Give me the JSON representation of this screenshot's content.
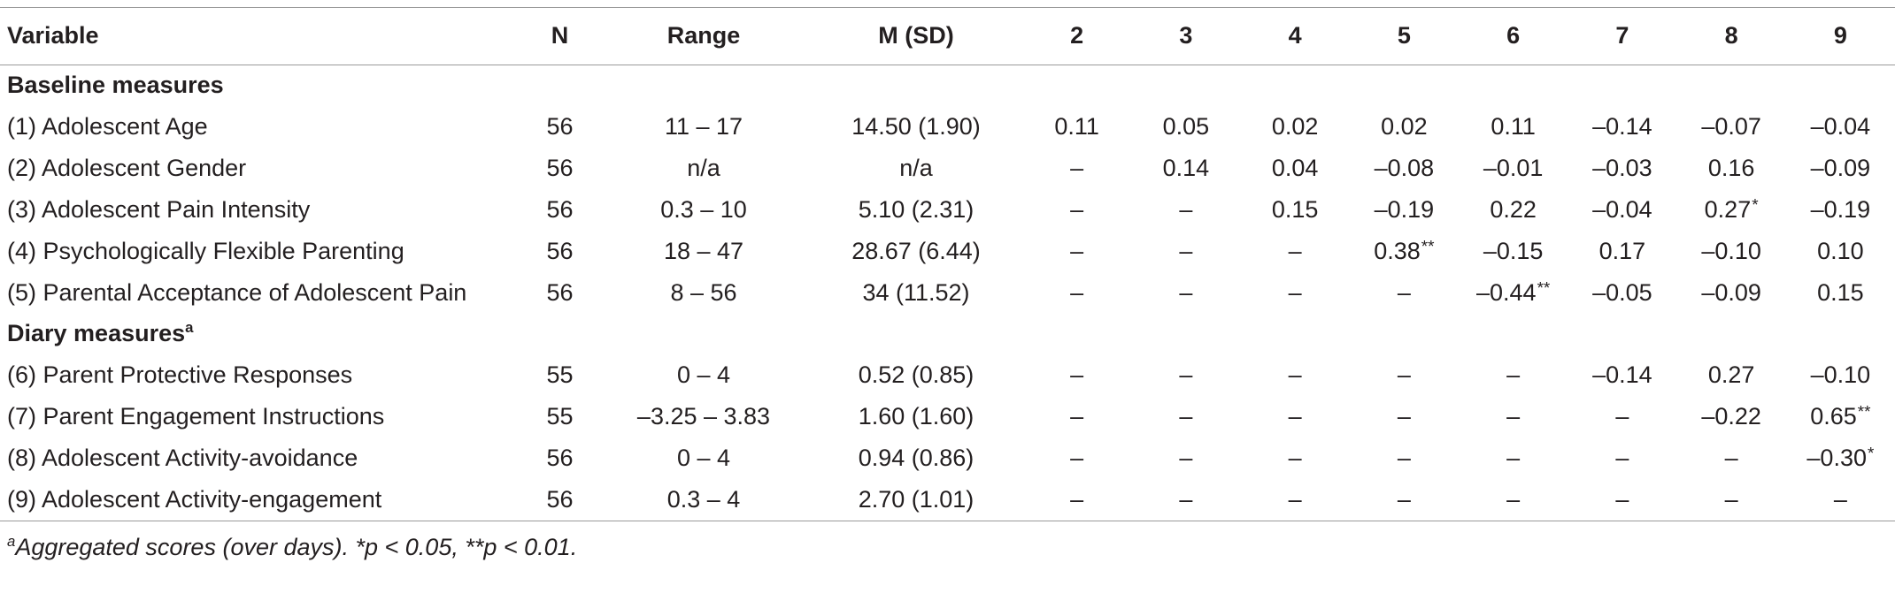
{
  "table": {
    "headers": {
      "variable": "Variable",
      "n": "N",
      "range": "Range",
      "msd": "M (SD)",
      "cols": [
        "2",
        "3",
        "4",
        "5",
        "6",
        "7",
        "8",
        "9"
      ]
    },
    "sections": {
      "baseline": "Baseline measures",
      "diary": "Diary measures",
      "diary_marker": "a"
    },
    "rows": [
      {
        "variable": "(1) Adolescent Age",
        "n": "56",
        "range": "11 – 17",
        "msd": "14.50 (1.90)",
        "values": [
          "0.11",
          "0.05",
          "0.02",
          "0.02",
          "0.11",
          "–0.14",
          "–0.07",
          "–0.04"
        ],
        "stars": [
          "",
          "",
          "",
          "",
          "",
          "",
          "",
          ""
        ]
      },
      {
        "variable": "(2) Adolescent Gender",
        "n": "56",
        "range": "n/a",
        "msd": "n/a",
        "values": [
          "–",
          "0.14",
          "0.04",
          "–0.08",
          "–0.01",
          "–0.03",
          "0.16",
          "–0.09"
        ],
        "stars": [
          "",
          "",
          "",
          "",
          "",
          "",
          "",
          ""
        ]
      },
      {
        "variable": "(3) Adolescent Pain Intensity",
        "n": "56",
        "range": "0.3 – 10",
        "msd": "5.10 (2.31)",
        "values": [
          "–",
          "–",
          "0.15",
          "–0.19",
          "0.22",
          "–0.04",
          "0.27",
          "–0.19"
        ],
        "stars": [
          "",
          "",
          "",
          "",
          "",
          "",
          "*",
          ""
        ]
      },
      {
        "variable": "(4) Psychologically Flexible Parenting",
        "n": "56",
        "range": "18 – 47",
        "msd": "28.67 (6.44)",
        "values": [
          "–",
          "–",
          "–",
          "0.38",
          "–0.15",
          "0.17",
          "–0.10",
          "0.10"
        ],
        "stars": [
          "",
          "",
          "",
          "**",
          "",
          "",
          "",
          ""
        ]
      },
      {
        "variable": "(5) Parental Acceptance of Adolescent Pain",
        "n": "56",
        "range": "8 – 56",
        "msd": "34 (11.52)",
        "values": [
          "–",
          "–",
          "–",
          "–",
          "–0.44",
          "–0.05",
          "–0.09",
          "0.15"
        ],
        "stars": [
          "",
          "",
          "",
          "",
          "**",
          "",
          "",
          ""
        ]
      },
      {
        "variable": "(6) Parent Protective Responses",
        "n": "55",
        "range": "0 – 4",
        "msd": "0.52 (0.85)",
        "values": [
          "–",
          "–",
          "–",
          "–",
          "–",
          "–0.14",
          "0.27",
          "–0.10"
        ],
        "stars": [
          "",
          "",
          "",
          "",
          "",
          "",
          "",
          ""
        ]
      },
      {
        "variable": "(7) Parent Engagement Instructions",
        "n": "55",
        "range": "–3.25 – 3.83",
        "msd": "1.60 (1.60)",
        "values": [
          "–",
          "–",
          "–",
          "–",
          "–",
          "–",
          "–0.22",
          "0.65"
        ],
        "stars": [
          "",
          "",
          "",
          "",
          "",
          "",
          "",
          "**"
        ]
      },
      {
        "variable": "(8) Adolescent Activity-avoidance",
        "n": "56",
        "range": "0 – 4",
        "msd": "0.94 (0.86)",
        "values": [
          "–",
          "–",
          "–",
          "–",
          "–",
          "–",
          "–",
          "–0.30"
        ],
        "stars": [
          "",
          "",
          "",
          "",
          "",
          "",
          "",
          "*"
        ]
      },
      {
        "variable": "(9) Adolescent Activity-engagement",
        "n": "56",
        "range": "0.3 – 4",
        "msd": "2.70 (1.01)",
        "values": [
          "–",
          "–",
          "–",
          "–",
          "–",
          "–",
          "–",
          "–"
        ],
        "stars": [
          "",
          "",
          "",
          "",
          "",
          "",
          "",
          ""
        ]
      }
    ]
  },
  "footnote": {
    "marker": "a",
    "text": "Aggregated scores (over days). *p < 0.05, **p < 0.01."
  }
}
